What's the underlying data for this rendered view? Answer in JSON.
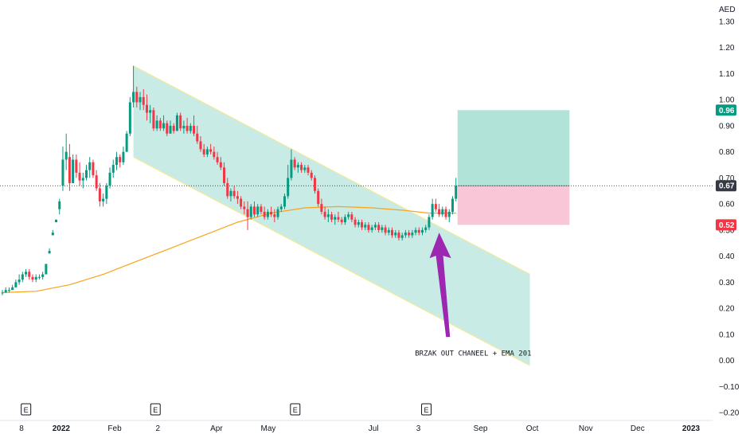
{
  "chart_data": {
    "type": "candlestick",
    "currency": "AED",
    "ylim": [
      -0.22,
      1.32
    ],
    "y_ticks": [
      1.3,
      1.2,
      1.1,
      1.0,
      0.9,
      0.8,
      0.7,
      0.6,
      0.5,
      0.4,
      0.3,
      0.2,
      0.1,
      0.0,
      -0.1,
      -0.2
    ],
    "y_tick_labels": [
      "1.30",
      "1.20",
      "1.10",
      "1.00",
      "0.90",
      "0.80",
      "0.70",
      "0.60",
      "0.50",
      "0.40",
      "0.30",
      "0.20",
      "0.10",
      "0.00",
      "−0.10",
      "−0.20"
    ],
    "x_ticks": [
      {
        "label": "8",
        "day": 0
      },
      {
        "label": "2022",
        "day": 23,
        "bold": true
      },
      {
        "label": "Feb",
        "day": 54
      },
      {
        "label": "2",
        "day": 79
      },
      {
        "label": "Apr",
        "day": 113
      },
      {
        "label": "May",
        "day": 143
      },
      {
        "label": "Jul",
        "day": 204
      },
      {
        "label": "3",
        "day": 230
      },
      {
        "label": "Sep",
        "day": 266
      },
      {
        "label": "Oct",
        "day": 296
      },
      {
        "label": "Nov",
        "day": 327
      },
      {
        "label": "Dec",
        "day": 357
      },
      {
        "label": "2023",
        "day": 388,
        "bold": true
      }
    ],
    "xlim_days": [
      -6,
      417
    ],
    "earnings_days": [
      -2,
      73,
      154,
      230
    ],
    "earnings_label": "E",
    "candles_up_color": "#089981",
    "candles_down_color": "#f23645",
    "candles": [
      [
        0,
        0.26,
        0.27,
        0.25,
        0.26
      ],
      [
        1,
        0.26,
        0.28,
        0.26,
        0.27
      ],
      [
        2,
        0.27,
        0.28,
        0.26,
        0.27
      ],
      [
        3,
        0.27,
        0.29,
        0.27,
        0.28
      ],
      [
        4,
        0.28,
        0.31,
        0.28,
        0.3
      ],
      [
        5,
        0.3,
        0.33,
        0.29,
        0.31
      ],
      [
        6,
        0.31,
        0.34,
        0.3,
        0.33
      ],
      [
        7,
        0.33,
        0.35,
        0.32,
        0.34
      ],
      [
        8,
        0.34,
        0.35,
        0.31,
        0.32
      ],
      [
        9,
        0.32,
        0.33,
        0.3,
        0.31
      ],
      [
        10,
        0.31,
        0.33,
        0.3,
        0.32
      ],
      [
        11,
        0.32,
        0.33,
        0.31,
        0.32
      ],
      [
        12,
        0.32,
        0.34,
        0.31,
        0.33
      ],
      [
        13,
        0.33,
        0.37,
        0.33,
        0.37
      ],
      [
        14,
        0.41,
        0.43,
        0.41,
        0.42
      ],
      [
        15,
        0.48,
        0.5,
        0.48,
        0.49
      ],
      [
        16,
        0.53,
        0.54,
        0.53,
        0.54
      ],
      [
        17,
        0.58,
        0.62,
        0.56,
        0.61
      ],
      [
        18,
        0.67,
        0.82,
        0.65,
        0.77
      ],
      [
        19,
        0.77,
        0.87,
        0.73,
        0.8
      ],
      [
        20,
        0.78,
        0.83,
        0.65,
        0.68
      ],
      [
        21,
        0.68,
        0.79,
        0.68,
        0.77
      ],
      [
        22,
        0.77,
        0.79,
        0.7,
        0.72
      ],
      [
        23,
        0.72,
        0.76,
        0.67,
        0.69
      ],
      [
        24,
        0.69,
        0.72,
        0.66,
        0.7
      ],
      [
        25,
        0.7,
        0.75,
        0.69,
        0.73
      ],
      [
        26,
        0.73,
        0.78,
        0.7,
        0.76
      ],
      [
        27,
        0.76,
        0.77,
        0.7,
        0.71
      ],
      [
        28,
        0.71,
        0.73,
        0.65,
        0.66
      ],
      [
        29,
        0.66,
        0.68,
        0.59,
        0.61
      ],
      [
        30,
        0.61,
        0.64,
        0.59,
        0.62
      ],
      [
        31,
        0.62,
        0.68,
        0.6,
        0.67
      ],
      [
        32,
        0.67,
        0.74,
        0.66,
        0.72
      ],
      [
        33,
        0.72,
        0.77,
        0.7,
        0.75
      ],
      [
        34,
        0.75,
        0.8,
        0.73,
        0.78
      ],
      [
        35,
        0.78,
        0.79,
        0.74,
        0.76
      ],
      [
        36,
        0.76,
        0.82,
        0.75,
        0.8
      ],
      [
        37,
        0.8,
        0.88,
        0.8,
        0.87
      ],
      [
        38,
        0.87,
        1.01,
        0.86,
        0.99
      ],
      [
        39,
        0.99,
        1.13,
        0.97,
        1.03
      ],
      [
        40,
        1.03,
        1.05,
        0.97,
        0.99
      ],
      [
        41,
        0.99,
        1.03,
        0.96,
        1.01
      ],
      [
        42,
        1.01,
        1.04,
        0.96,
        0.98
      ],
      [
        43,
        0.98,
        1.02,
        0.92,
        0.95
      ],
      [
        44,
        0.95,
        0.98,
        0.91,
        0.96
      ],
      [
        45,
        0.96,
        0.97,
        0.88,
        0.89
      ],
      [
        46,
        0.89,
        0.94,
        0.88,
        0.92
      ],
      [
        47,
        0.92,
        0.93,
        0.88,
        0.89
      ],
      [
        48,
        0.89,
        0.94,
        0.88,
        0.91
      ],
      [
        49,
        0.91,
        0.92,
        0.86,
        0.87
      ],
      [
        50,
        0.87,
        0.92,
        0.87,
        0.9
      ],
      [
        51,
        0.9,
        0.91,
        0.87,
        0.88
      ],
      [
        52,
        0.88,
        0.95,
        0.88,
        0.94
      ],
      [
        53,
        0.94,
        0.95,
        0.88,
        0.89
      ],
      [
        54,
        0.89,
        0.92,
        0.87,
        0.9
      ],
      [
        55,
        0.9,
        0.93,
        0.87,
        0.88
      ],
      [
        56,
        0.88,
        0.91,
        0.87,
        0.9
      ],
      [
        57,
        0.9,
        0.94,
        0.86,
        0.87
      ],
      [
        58,
        0.87,
        0.9,
        0.83,
        0.84
      ],
      [
        59,
        0.84,
        0.86,
        0.8,
        0.81
      ],
      [
        60,
        0.81,
        0.83,
        0.78,
        0.79
      ],
      [
        61,
        0.79,
        0.82,
        0.78,
        0.81
      ],
      [
        62,
        0.81,
        0.83,
        0.79,
        0.8
      ],
      [
        63,
        0.8,
        0.82,
        0.77,
        0.78
      ],
      [
        64,
        0.78,
        0.8,
        0.75,
        0.76
      ],
      [
        65,
        0.76,
        0.78,
        0.73,
        0.74
      ],
      [
        66,
        0.74,
        0.76,
        0.67,
        0.68
      ],
      [
        67,
        0.68,
        0.7,
        0.62,
        0.63
      ],
      [
        68,
        0.63,
        0.66,
        0.61,
        0.65
      ],
      [
        69,
        0.65,
        0.67,
        0.62,
        0.63
      ],
      [
        70,
        0.63,
        0.65,
        0.6,
        0.62
      ],
      [
        71,
        0.62,
        0.63,
        0.58,
        0.59
      ],
      [
        72,
        0.59,
        0.61,
        0.56,
        0.58
      ],
      [
        73,
        0.58,
        0.61,
        0.5,
        0.55
      ],
      [
        74,
        0.55,
        0.6,
        0.54,
        0.59
      ],
      [
        75,
        0.59,
        0.61,
        0.55,
        0.56
      ],
      [
        76,
        0.56,
        0.6,
        0.55,
        0.59
      ],
      [
        77,
        0.59,
        0.6,
        0.56,
        0.57
      ],
      [
        78,
        0.57,
        0.59,
        0.54,
        0.55
      ],
      [
        79,
        0.55,
        0.58,
        0.54,
        0.57
      ],
      [
        80,
        0.57,
        0.59,
        0.55,
        0.56
      ],
      [
        81,
        0.56,
        0.58,
        0.53,
        0.55
      ],
      [
        82,
        0.55,
        0.59,
        0.54,
        0.58
      ],
      [
        83,
        0.58,
        0.6,
        0.57,
        0.59
      ],
      [
        84,
        0.59,
        0.64,
        0.58,
        0.63
      ],
      [
        85,
        0.63,
        0.75,
        0.62,
        0.7
      ],
      [
        86,
        0.7,
        0.81,
        0.69,
        0.77
      ],
      [
        87,
        0.77,
        0.78,
        0.73,
        0.74
      ],
      [
        88,
        0.74,
        0.76,
        0.72,
        0.75
      ],
      [
        89,
        0.75,
        0.76,
        0.72,
        0.73
      ],
      [
        90,
        0.73,
        0.75,
        0.72,
        0.74
      ],
      [
        91,
        0.74,
        0.75,
        0.71,
        0.72
      ],
      [
        92,
        0.72,
        0.73,
        0.69,
        0.7
      ],
      [
        93,
        0.7,
        0.71,
        0.64,
        0.65
      ],
      [
        94,
        0.65,
        0.66,
        0.59,
        0.6
      ],
      [
        95,
        0.6,
        0.62,
        0.56,
        0.57
      ],
      [
        96,
        0.57,
        0.59,
        0.54,
        0.55
      ],
      [
        97,
        0.55,
        0.58,
        0.53,
        0.56
      ],
      [
        98,
        0.56,
        0.57,
        0.53,
        0.54
      ],
      [
        99,
        0.54,
        0.56,
        0.52,
        0.55
      ],
      [
        100,
        0.55,
        0.57,
        0.53,
        0.54
      ],
      [
        101,
        0.54,
        0.55,
        0.52,
        0.53
      ],
      [
        102,
        0.53,
        0.56,
        0.52,
        0.55
      ],
      [
        103,
        0.55,
        0.57,
        0.54,
        0.56
      ],
      [
        104,
        0.56,
        0.57,
        0.53,
        0.54
      ],
      [
        105,
        0.54,
        0.55,
        0.51,
        0.52
      ],
      [
        106,
        0.52,
        0.54,
        0.51,
        0.53
      ],
      [
        107,
        0.53,
        0.54,
        0.5,
        0.51
      ],
      [
        108,
        0.51,
        0.53,
        0.5,
        0.52
      ],
      [
        109,
        0.52,
        0.53,
        0.49,
        0.5
      ],
      [
        110,
        0.5,
        0.52,
        0.49,
        0.51
      ],
      [
        111,
        0.51,
        0.53,
        0.5,
        0.52
      ],
      [
        112,
        0.52,
        0.53,
        0.49,
        0.5
      ],
      [
        113,
        0.5,
        0.52,
        0.49,
        0.51
      ],
      [
        114,
        0.51,
        0.52,
        0.48,
        0.49
      ],
      [
        115,
        0.49,
        0.51,
        0.48,
        0.5
      ],
      [
        116,
        0.5,
        0.51,
        0.47,
        0.48
      ],
      [
        117,
        0.48,
        0.5,
        0.47,
        0.49
      ],
      [
        118,
        0.49,
        0.5,
        0.46,
        0.47
      ],
      [
        119,
        0.47,
        0.49,
        0.46,
        0.48
      ],
      [
        120,
        0.48,
        0.5,
        0.47,
        0.49
      ],
      [
        121,
        0.49,
        0.5,
        0.47,
        0.48
      ],
      [
        122,
        0.48,
        0.5,
        0.47,
        0.49
      ],
      [
        123,
        0.49,
        0.51,
        0.48,
        0.5
      ],
      [
        124,
        0.5,
        0.51,
        0.48,
        0.49
      ],
      [
        125,
        0.49,
        0.51,
        0.48,
        0.5
      ],
      [
        126,
        0.5,
        0.52,
        0.49,
        0.51
      ],
      [
        127,
        0.51,
        0.56,
        0.5,
        0.55
      ],
      [
        128,
        0.55,
        0.62,
        0.54,
        0.6
      ],
      [
        129,
        0.6,
        0.62,
        0.57,
        0.58
      ],
      [
        130,
        0.58,
        0.6,
        0.55,
        0.56
      ],
      [
        131,
        0.56,
        0.59,
        0.55,
        0.58
      ],
      [
        132,
        0.58,
        0.59,
        0.54,
        0.55
      ],
      [
        133,
        0.55,
        0.58,
        0.53,
        0.57
      ],
      [
        134,
        0.57,
        0.63,
        0.56,
        0.62
      ],
      [
        135,
        0.62,
        0.7,
        0.61,
        0.67
      ]
    ],
    "ema_label": "EMA 201",
    "ema_color": "#f7a31c",
    "ema": [
      [
        0,
        0.26
      ],
      [
        10,
        0.265
      ],
      [
        20,
        0.29
      ],
      [
        30,
        0.33
      ],
      [
        40,
        0.38
      ],
      [
        50,
        0.43
      ],
      [
        60,
        0.48
      ],
      [
        70,
        0.53
      ],
      [
        80,
        0.565
      ],
      [
        90,
        0.585
      ],
      [
        100,
        0.59
      ],
      [
        110,
        0.585
      ],
      [
        120,
        0.575
      ],
      [
        127,
        0.565
      ],
      [
        135,
        0.565
      ]
    ],
    "channel": {
      "upper": [
        [
          39,
          1.13
        ],
        [
          129,
          0.52
        ]
      ],
      "lower": [
        [
          39,
          0.78
        ],
        [
          129,
          0.17
        ]
      ],
      "extend_to": 157,
      "fill": "#bfe8e0",
      "line_color": "#f5e99a"
    },
    "position": {
      "x_start": 135,
      "x_end": 165,
      "entry": 0.67,
      "target": 0.96,
      "stop": 0.52,
      "target_color": "#b2e3d9",
      "stop_color": "#f8c6d6"
    },
    "last_price": 0.67,
    "price_badges": [
      {
        "value": 0.96,
        "label": "0.96",
        "color": "#089981"
      },
      {
        "value": 0.67,
        "label": "0.67",
        "color": "#363a45"
      },
      {
        "value": 0.52,
        "label": "0.52",
        "color": "#f23645"
      }
    ],
    "annotation": {
      "text": "BRZAK OUT CHANEEL + EMA 201",
      "arrow_color": "#9c27b0",
      "arrow_from": [
        133,
        0.09
      ],
      "arrow_to": [
        130,
        0.49
      ],
      "text_at": [
        124,
        0.03
      ]
    }
  }
}
